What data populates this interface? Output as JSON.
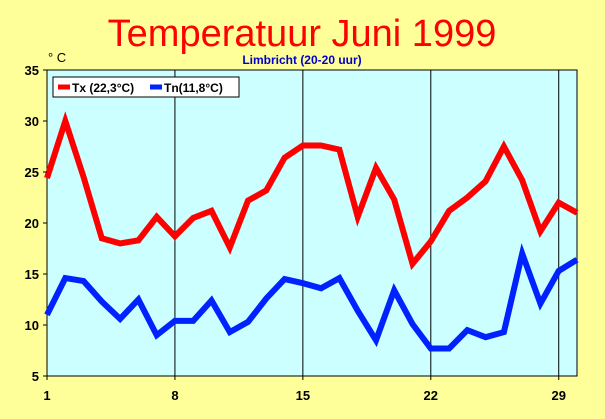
{
  "chart_data": {
    "type": "line",
    "title": "Temperatuur Juni 1999",
    "subtitle": "Limbricht (20-20 uur)",
    "yunit": "° C",
    "x": [
      1,
      2,
      3,
      4,
      5,
      6,
      7,
      8,
      9,
      10,
      11,
      12,
      13,
      14,
      15,
      16,
      17,
      18,
      19,
      20,
      21,
      22,
      23,
      24,
      25,
      26,
      27,
      28,
      29,
      30
    ],
    "xlim": [
      1,
      30
    ],
    "xticks": [
      1,
      8,
      15,
      22,
      29
    ],
    "ylim": [
      5,
      35
    ],
    "yticks": [
      5,
      10,
      15,
      20,
      25,
      30,
      35
    ],
    "grid": {
      "vertical": true,
      "horizontal": false
    },
    "legend_position": "top-left",
    "series": [
      {
        "name": "Tx (22,3°C)",
        "color": "#ff0000",
        "values": [
          24.4,
          30.0,
          24.5,
          18.5,
          18.0,
          18.3,
          20.6,
          18.7,
          20.5,
          21.2,
          17.6,
          22.2,
          23.2,
          26.4,
          27.6,
          27.6,
          27.2,
          20.6,
          25.4,
          22.3,
          16.0,
          18.2,
          21.2,
          22.5,
          24.1,
          27.5,
          24.2,
          19.2,
          22.0,
          21.0
        ]
      },
      {
        "name": "Tn(11,8°C)",
        "color": "#0022ff",
        "values": [
          11.0,
          14.6,
          14.3,
          12.3,
          10.6,
          12.5,
          9.0,
          10.4,
          10.4,
          12.4,
          9.3,
          10.3,
          12.6,
          14.5,
          14.1,
          13.6,
          14.6,
          11.4,
          8.5,
          13.4,
          10.1,
          7.7,
          7.7,
          9.5,
          8.8,
          9.3,
          17.0,
          12.1,
          15.3,
          16.4
        ]
      }
    ]
  }
}
